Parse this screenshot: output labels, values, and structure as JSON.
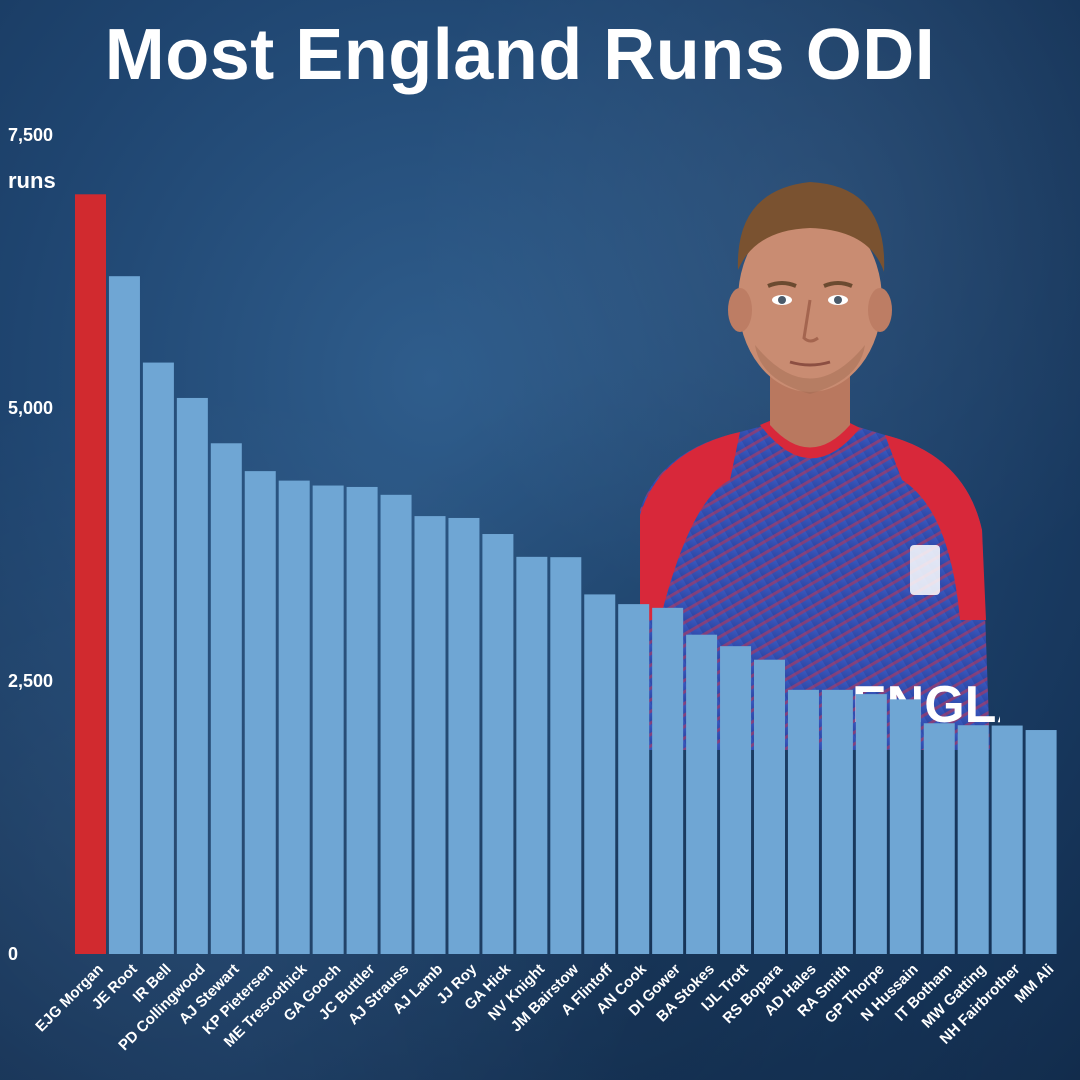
{
  "title": "Most England Runs ODI",
  "chart_data": {
    "type": "bar",
    "title": "Most England Runs ODI",
    "ylabel": "runs",
    "xlabel": "",
    "ylim": [
      0,
      7500
    ],
    "yticks": [
      "0",
      "2,500",
      "5,000",
      "7,500"
    ],
    "grid": false,
    "highlight_color": "#d12a2f",
    "bar_color": "#6fa6d4",
    "categories": [
      "EJG Morgan",
      "JE Root",
      "IR Bell",
      "PD Collingwood",
      "AJ Stewart",
      "KP Pietersen",
      "ME Trescothick",
      "GA Gooch",
      "JC Buttler",
      "AJ Strauss",
      "AJ Lamb",
      "JJ Roy",
      "GA Hick",
      "NV Knight",
      "JM Bairstow",
      "A Flintoff",
      "AN Cook",
      "DI Gower",
      "BA Stokes",
      "IJL Trott",
      "RS Bopara",
      "AD Hales",
      "RA Smith",
      "GP Thorpe",
      "N Hussain",
      "IT Botham",
      "MW Gatting",
      "NH Fairbrother",
      "MM Ali"
    ],
    "values": [
      6957,
      6207,
      5416,
      5092,
      4677,
      4422,
      4335,
      4290,
      4277,
      4205,
      4010,
      3993,
      3846,
      3637,
      3634,
      3293,
      3204,
      3170,
      2924,
      2819,
      2695,
      2419,
      2419,
      2380,
      2332,
      2113,
      2095,
      2092,
      2051
    ],
    "highlight_index": 0
  },
  "photo": {
    "shirt_text": "ENGLAND",
    "colors": {
      "jersey_blue": "#3551b8",
      "jersey_red": "#d8283a",
      "skin": "#c98c72",
      "hair": "#7a5230"
    }
  }
}
